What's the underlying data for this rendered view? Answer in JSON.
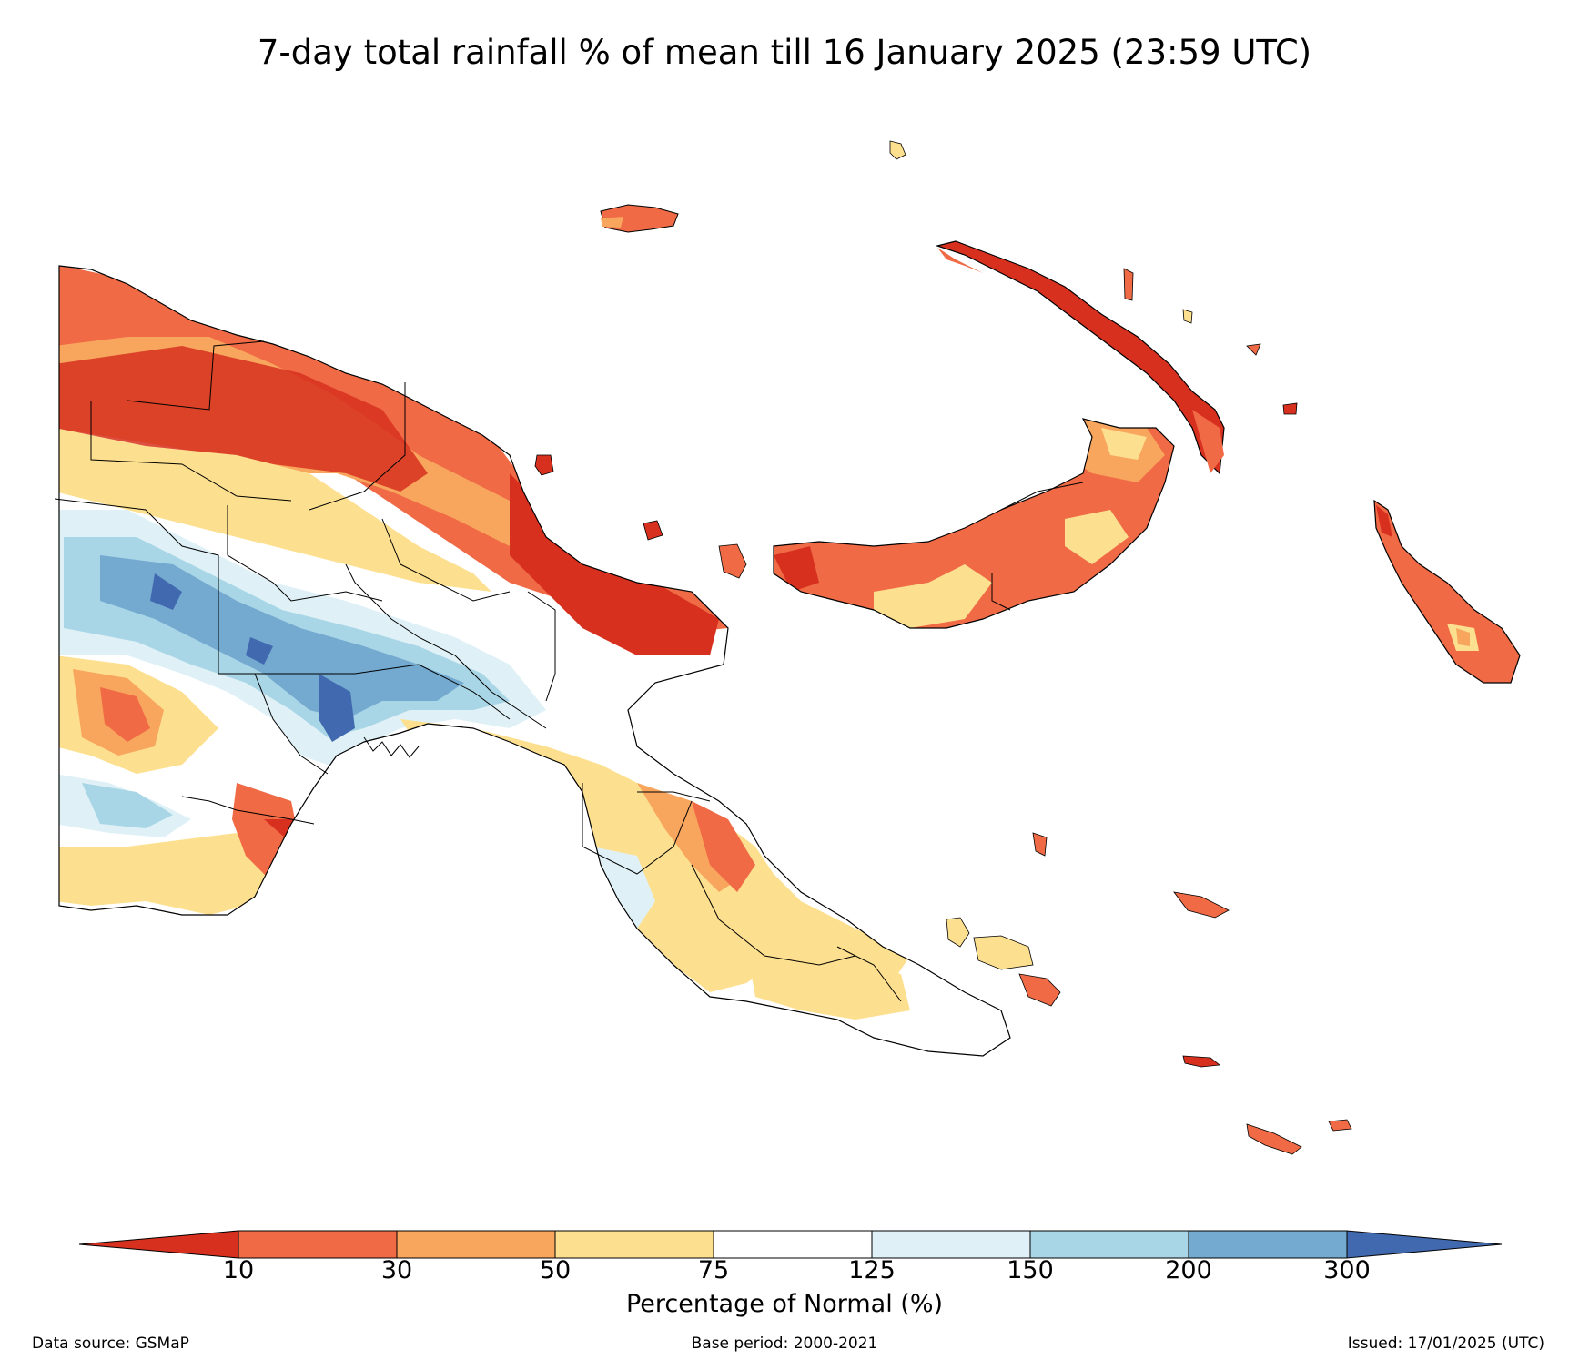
{
  "title": "7-day total rainfall % of mean till 16 January 2025 (23:59 UTC)",
  "colorbar": {
    "label": "Percentage of Normal (%)",
    "ticks": [
      "10",
      "30",
      "50",
      "75",
      "125",
      "150",
      "200",
      "300"
    ],
    "under_color": "#d7301f",
    "over_color": "#4169b0",
    "bins": [
      {
        "from": "10",
        "to": "30",
        "color": "#ef6a45"
      },
      {
        "from": "30",
        "to": "50",
        "color": "#f8a55e"
      },
      {
        "from": "50",
        "to": "75",
        "color": "#fde08f"
      },
      {
        "from": "75",
        "to": "125",
        "color": "#ffffff"
      },
      {
        "from": "125",
        "to": "150",
        "color": "#dff1f7"
      },
      {
        "from": "150",
        "to": "200",
        "color": "#a9d6e6"
      },
      {
        "from": "200",
        "to": "300",
        "color": "#74a9d0"
      }
    ]
  },
  "footer": {
    "source": "Data source: GSMaP",
    "base_period": "Base period: 2000-2021",
    "issued": "Issued: 17/01/2025 (UTC)"
  }
}
